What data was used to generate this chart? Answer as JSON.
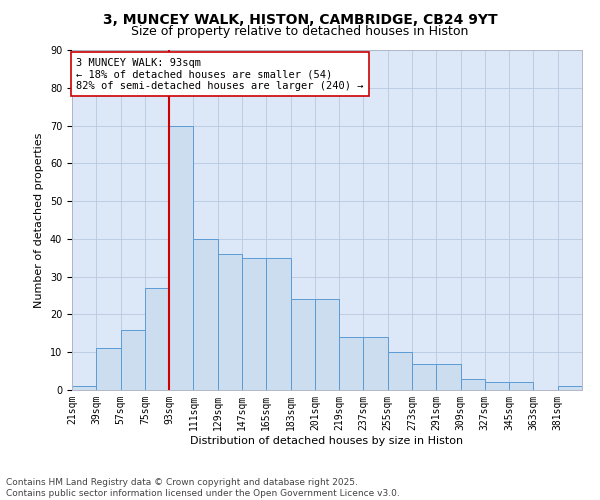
{
  "title_line1": "3, MUNCEY WALK, HISTON, CAMBRIDGE, CB24 9YT",
  "title_line2": "Size of property relative to detached houses in Histon",
  "xlabel": "Distribution of detached houses by size in Histon",
  "ylabel": "Number of detached properties",
  "bar_values": [
    1,
    11,
    16,
    27,
    70,
    40,
    36,
    35,
    35,
    24,
    24,
    14,
    14,
    10,
    7,
    7,
    3,
    2,
    2,
    0,
    1
  ],
  "bin_labels": [
    "21sqm",
    "39sqm",
    "57sqm",
    "75sqm",
    "93sqm",
    "111sqm",
    "129sqm",
    "147sqm",
    "165sqm",
    "183sqm",
    "201sqm",
    "219sqm",
    "237sqm",
    "255sqm",
    "273sqm",
    "291sqm",
    "309sqm",
    "327sqm",
    "345sqm",
    "363sqm",
    "381sqm"
  ],
  "bar_color": "#ccddf0",
  "bar_edge_color": "#5b9bd5",
  "vline_x": 4,
  "vline_color": "#cc0000",
  "annotation_text": "3 MUNCEY WALK: 93sqm\n← 18% of detached houses are smaller (54)\n82% of semi-detached houses are larger (240) →",
  "annotation_box_color": "#ffffff",
  "annotation_box_edge_color": "#cc0000",
  "ylim": [
    0,
    90
  ],
  "yticks": [
    0,
    10,
    20,
    30,
    40,
    50,
    60,
    70,
    80,
    90
  ],
  "background_color": "#dce8f8",
  "footer_line1": "Contains HM Land Registry data © Crown copyright and database right 2025.",
  "footer_line2": "Contains public sector information licensed under the Open Government Licence v3.0.",
  "title_fontsize": 10,
  "subtitle_fontsize": 9,
  "axis_label_fontsize": 8,
  "tick_fontsize": 7,
  "annotation_fontsize": 7.5,
  "footer_fontsize": 6.5
}
